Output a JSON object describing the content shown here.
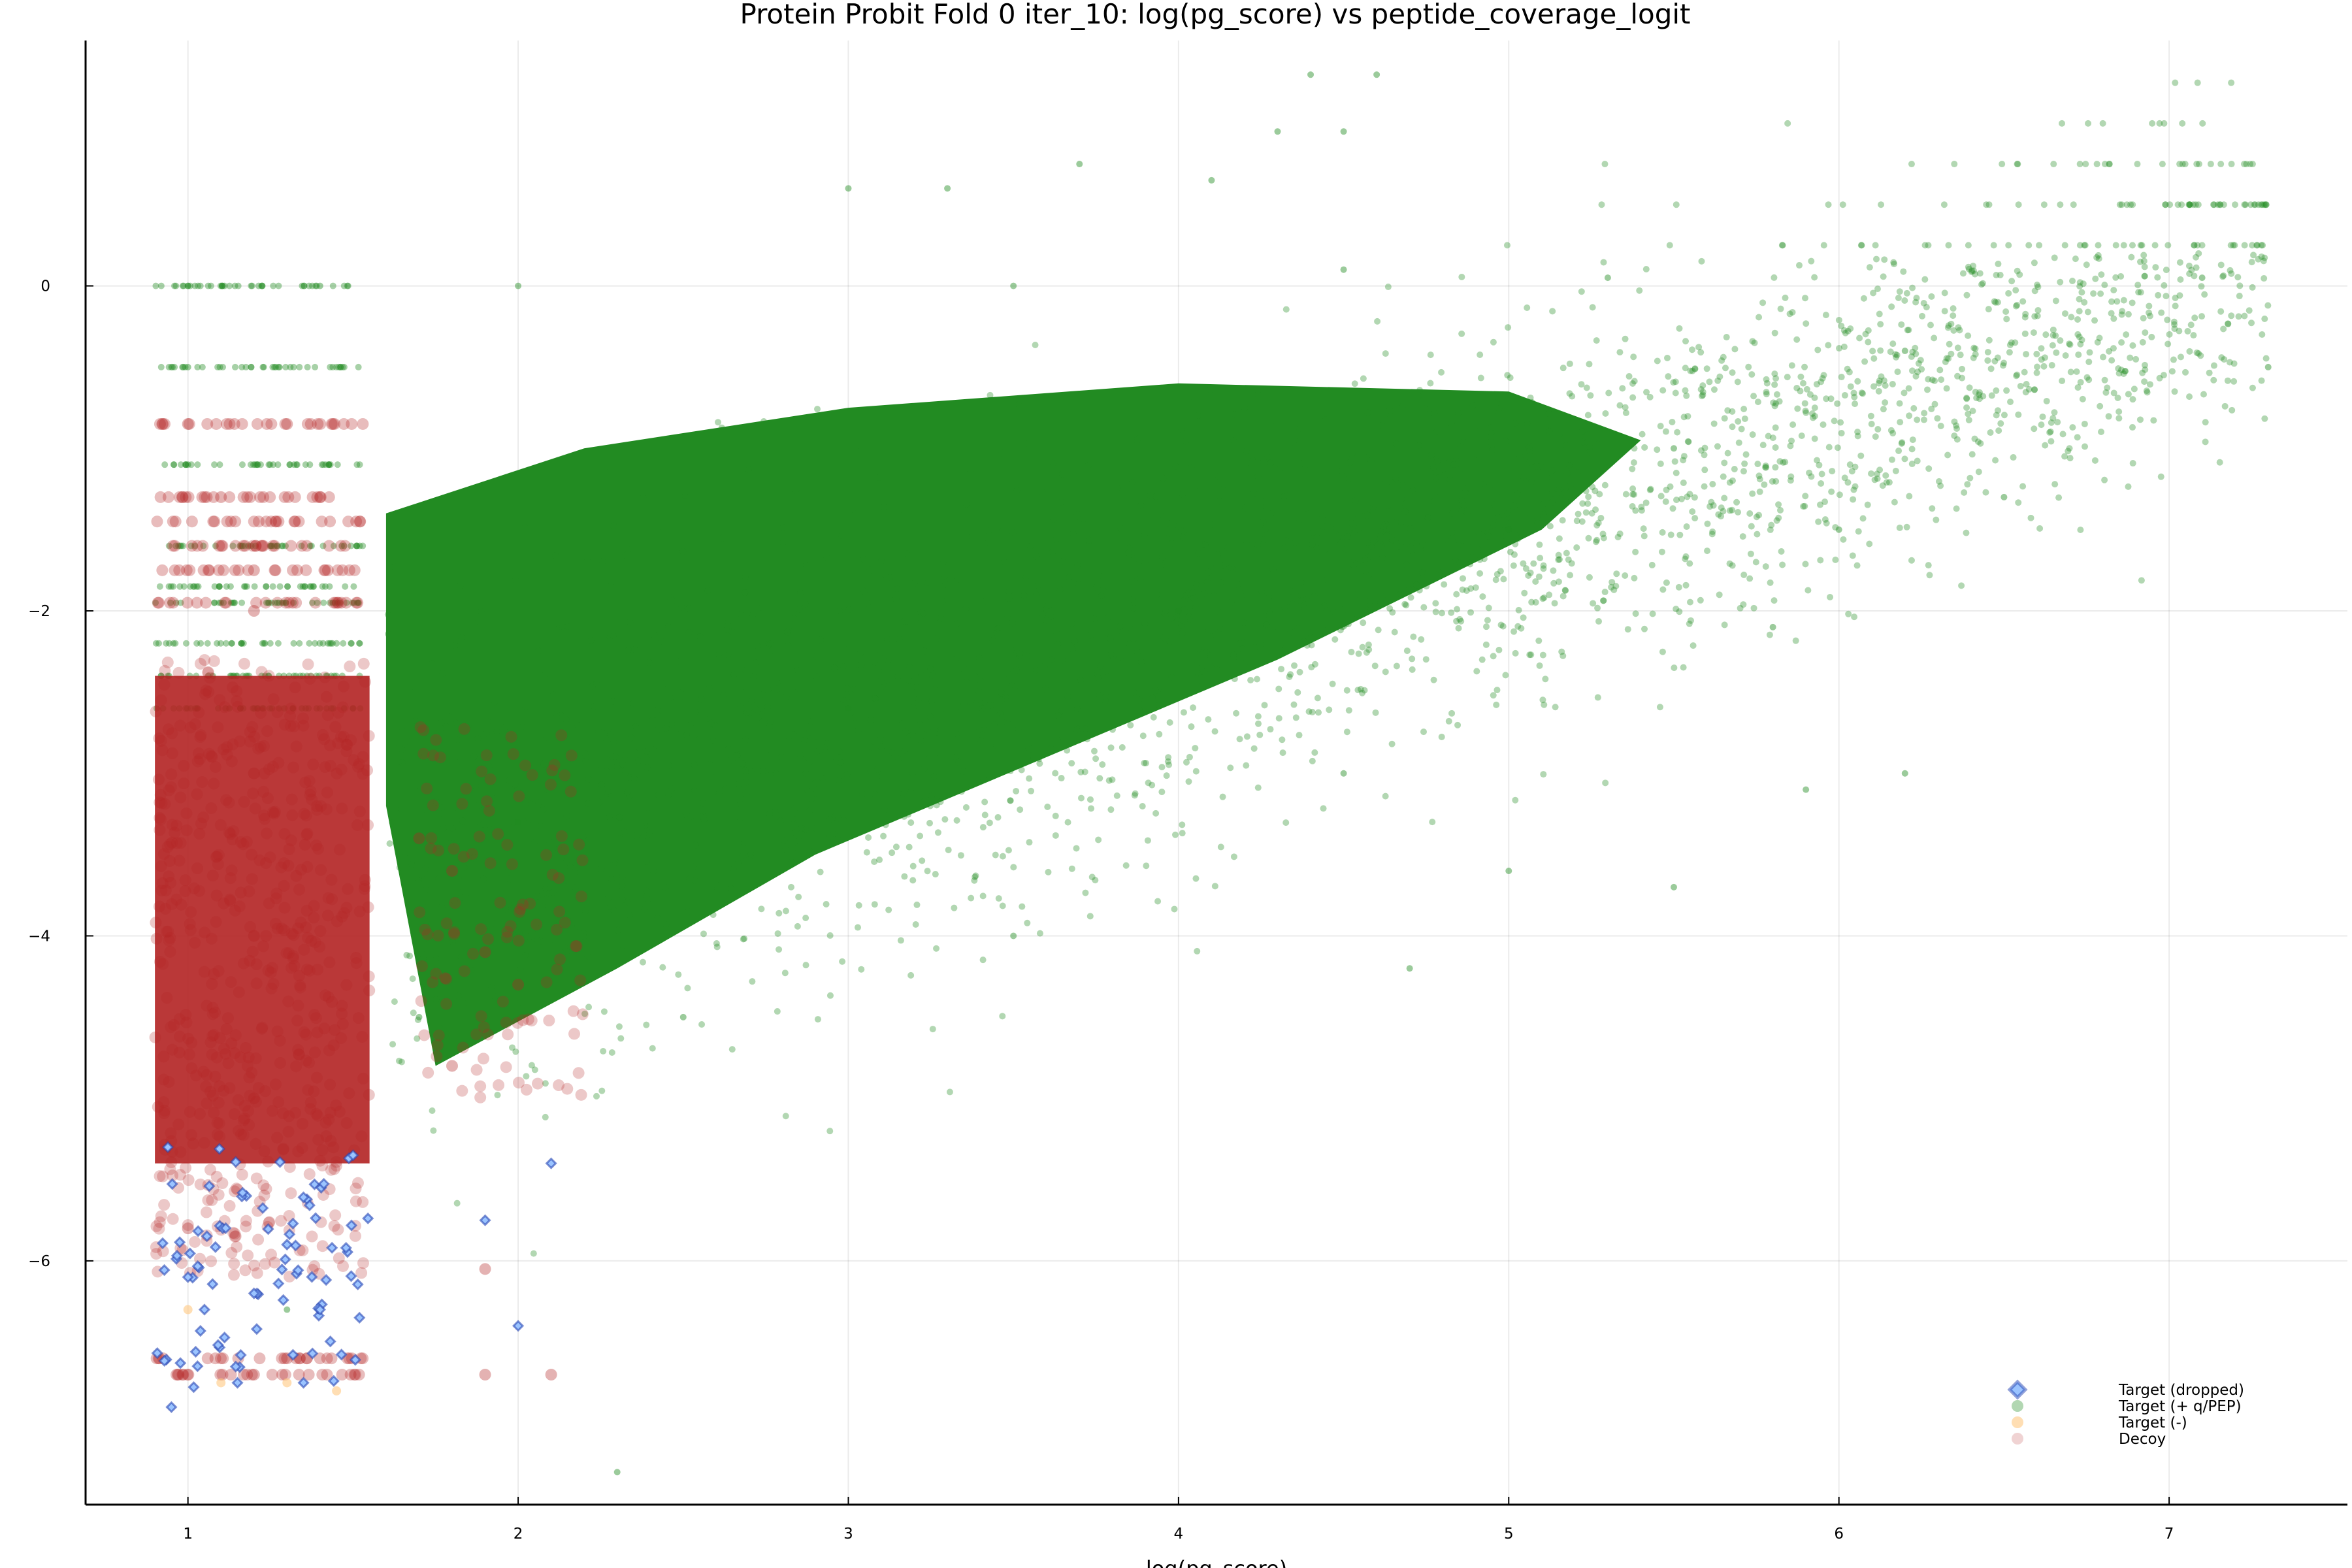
{
  "chart_data": {
    "type": "scatter",
    "title": "Protein Probit Fold 0 iter_10: log(pg_score) vs peptide_coverage_logit",
    "xlabel": "log(pg_score)",
    "ylabel": "",
    "xlim": [
      0.69,
      7.54
    ],
    "ylim": [
      -7.5,
      1.51
    ],
    "xticks": [
      1,
      2,
      3,
      4,
      5,
      6,
      7
    ],
    "yticks": [
      0,
      -2,
      -4,
      -6
    ],
    "xtick_labels": [
      "1",
      "2",
      "3",
      "4",
      "5",
      "6",
      "7"
    ],
    "ytick_labels": [
      "0",
      "−2",
      "−4",
      "−6"
    ],
    "grid": true,
    "legend_position": "bottom-right",
    "series": [
      {
        "name": "Target (dropped)",
        "marker": "diamond",
        "color": "#2846b4",
        "points": [
          [
            1.0,
            -6.1
          ],
          [
            1.2,
            -6.2
          ],
          [
            1.4,
            -6.3
          ],
          [
            0.95,
            -6.9
          ],
          [
            1.15,
            -6.75
          ],
          [
            1.35,
            -6.75
          ],
          [
            1.9,
            -5.75
          ],
          [
            2.0,
            -6.4
          ],
          [
            1.3,
            -5.9
          ],
          [
            1.5,
            -5.35
          ],
          [
            1.05,
            -6.3
          ],
          [
            2.1,
            -5.4
          ]
        ]
      },
      {
        "name": "Target (+ q/PEP)",
        "marker": "circle",
        "color": "#228b22",
        "points": [
          [
            4.4,
            1.3
          ],
          [
            4.6,
            1.3
          ],
          [
            4.3,
            0.95
          ],
          [
            4.5,
            0.95
          ],
          [
            3.0,
            0.6
          ],
          [
            3.3,
            0.6
          ],
          [
            3.7,
            0.75
          ],
          [
            4.1,
            0.65
          ],
          [
            1.0,
            0.0
          ],
          [
            1.4,
            0.0
          ],
          [
            2.0,
            0.0
          ],
          [
            3.5,
            0.0
          ],
          [
            4.5,
            0.1
          ],
          [
            5.3,
            0.05
          ],
          [
            7.1,
            0.05
          ],
          [
            7.3,
            -0.5
          ],
          [
            6.2,
            -0.4
          ],
          [
            6.5,
            -1.3
          ],
          [
            6.0,
            -1.5
          ],
          [
            5.5,
            -1.0
          ],
          [
            5.0,
            -1.5
          ],
          [
            4.0,
            -2.0
          ],
          [
            3.0,
            -2.6
          ],
          [
            2.0,
            -3.3
          ],
          [
            1.7,
            -4.5
          ],
          [
            2.5,
            -4.5
          ],
          [
            3.5,
            -4.0
          ],
          [
            4.5,
            -3.0
          ],
          [
            5.0,
            -3.6
          ],
          [
            5.5,
            -3.7
          ],
          [
            5.9,
            -3.1
          ],
          [
            6.2,
            -3.0
          ],
          [
            2.3,
            -7.3
          ],
          [
            1.0,
            -0.5
          ],
          [
            1.0,
            -1.1
          ],
          [
            1.3,
            -6.3
          ],
          [
            4.7,
            -4.2
          ],
          [
            5.8,
            -2.1
          ]
        ]
      },
      {
        "name": "Target (-)",
        "marker": "circle",
        "color": "#ffc880",
        "points": [
          [
            1.1,
            -6.75
          ],
          [
            1.3,
            -6.75
          ],
          [
            1.0,
            -6.3
          ],
          [
            1.45,
            -6.8
          ]
        ]
      },
      {
        "name": "Decoy",
        "marker": "circle",
        "color": "#b22222",
        "points": [
          [
            1.0,
            -0.85
          ],
          [
            1.3,
            -0.85
          ],
          [
            1.1,
            -1.3
          ],
          [
            1.4,
            -1.3
          ],
          [
            1.2,
            -1.75
          ],
          [
            1.2,
            -2.0
          ],
          [
            1.2,
            -3.0
          ],
          [
            1.2,
            -4.0
          ],
          [
            1.2,
            -5.0
          ],
          [
            1.0,
            -5.8
          ],
          [
            1.3,
            -6.6
          ],
          [
            1.2,
            -6.7
          ],
          [
            1.9,
            -6.7
          ],
          [
            2.1,
            -6.7
          ],
          [
            1.9,
            -4.1
          ],
          [
            2.0,
            -4.3
          ],
          [
            1.8,
            -3.6
          ],
          [
            1.9,
            -6.05
          ],
          [
            1.8,
            -4.8
          ],
          [
            1.7,
            -3.4
          ]
        ]
      }
    ]
  }
}
